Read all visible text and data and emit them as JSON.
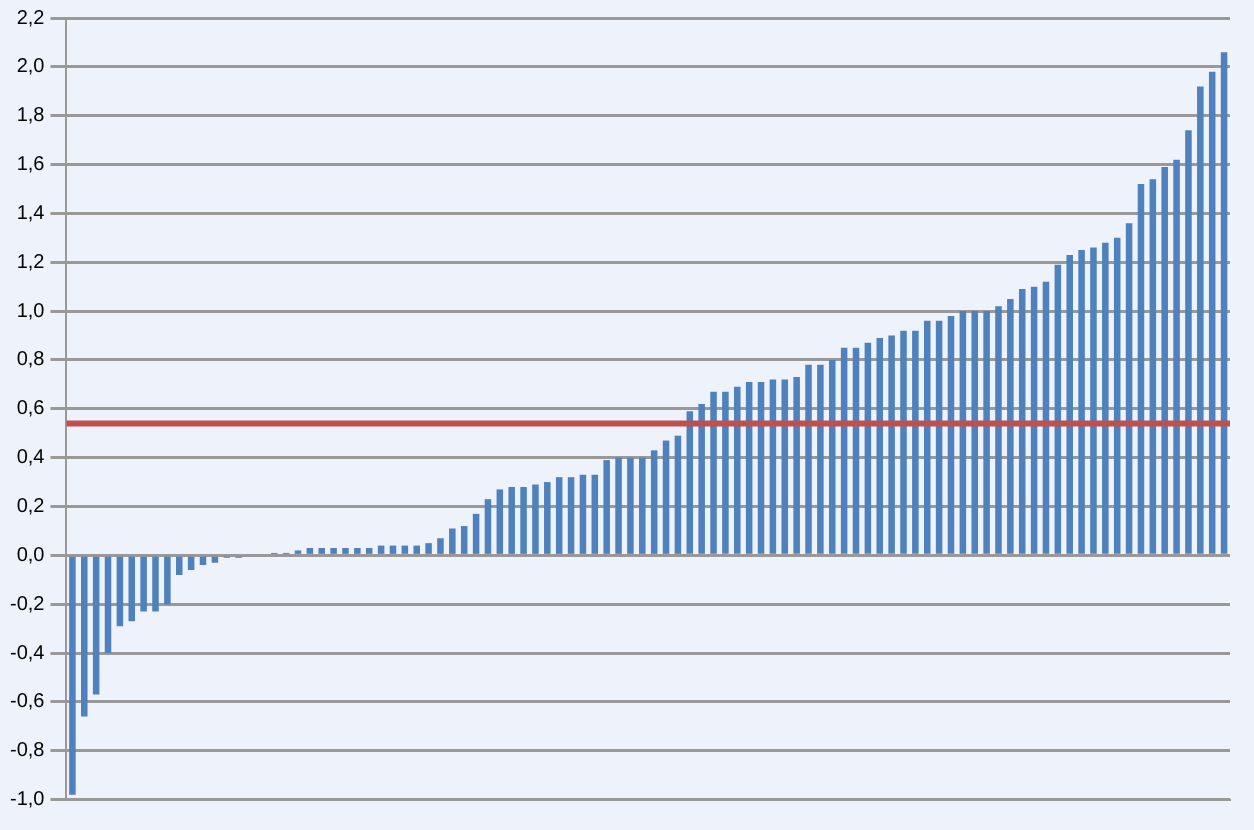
{
  "chart_data": {
    "type": "bar",
    "categories": [
      null,
      null,
      null,
      null,
      null,
      null,
      null,
      null,
      null,
      null,
      null,
      null,
      null,
      null,
      null,
      null,
      null,
      null,
      null,
      null,
      null,
      null,
      null,
      null,
      null,
      null,
      null,
      null,
      null,
      null,
      null,
      null,
      null,
      null,
      null,
      null,
      null,
      null,
      null,
      null,
      null,
      null,
      null,
      null,
      null,
      null,
      null,
      null,
      null,
      null,
      null,
      null,
      null,
      null,
      null,
      null,
      null,
      null,
      null,
      null,
      null,
      null,
      null,
      null,
      null,
      null,
      null,
      null,
      null,
      null,
      null,
      null,
      null,
      null,
      null,
      null,
      null,
      null,
      null,
      null,
      null,
      null,
      null,
      null,
      null,
      null,
      null,
      null,
      null,
      null,
      null,
      null,
      null,
      null,
      null,
      null,
      null,
      null
    ],
    "values": [
      -0.98,
      -0.66,
      -0.57,
      -0.4,
      -0.29,
      -0.27,
      -0.23,
      -0.23,
      -0.2,
      -0.08,
      -0.06,
      -0.04,
      -0.03,
      -0.01,
      -0.01,
      0,
      0,
      0.01,
      0.01,
      0.02,
      0.03,
      0.03,
      0.03,
      0.03,
      0.03,
      0.03,
      0.04,
      0.04,
      0.04,
      0.04,
      0.05,
      0.07,
      0.11,
      0.12,
      0.17,
      0.23,
      0.27,
      0.28,
      0.28,
      0.29,
      0.3,
      0.32,
      0.32,
      0.33,
      0.33,
      0.39,
      0.4,
      0.4,
      0.4,
      0.43,
      0.47,
      0.49,
      0.59,
      0.62,
      0.67,
      0.67,
      0.69,
      0.71,
      0.71,
      0.72,
      0.72,
      0.73,
      0.78,
      0.78,
      0.8,
      0.85,
      0.85,
      0.87,
      0.89,
      0.9,
      0.92,
      0.92,
      0.96,
      0.96,
      0.98,
      1.0,
      1.0,
      1.0,
      1.02,
      1.05,
      1.09,
      1.1,
      1.12,
      1.19,
      1.23,
      1.25,
      1.26,
      1.28,
      1.3,
      1.36,
      1.52,
      1.54,
      1.59,
      1.62,
      1.74,
      1.92,
      1.98,
      2.06
    ],
    "color": "#4f81bd",
    "ylim": [
      -1,
      2.2
    ],
    "yticks": [
      {
        "value": -1,
        "label": "-1,0"
      },
      {
        "value": -0.8,
        "label": "-0,8"
      },
      {
        "value": -0.6,
        "label": "-0,6"
      },
      {
        "value": -0.4,
        "label": "-0,4"
      },
      {
        "value": -0.2,
        "label": "-0,2"
      },
      {
        "value": 0,
        "label": "0,0"
      },
      {
        "value": 0.2,
        "label": "0,2"
      },
      {
        "value": 0.4,
        "label": "0,4"
      },
      {
        "value": 0.6,
        "label": "0,6"
      },
      {
        "value": 0.8,
        "label": "0,8"
      },
      {
        "value": 1,
        "label": "1,0"
      },
      {
        "value": 1.2,
        "label": "1,2"
      },
      {
        "value": 1.4,
        "label": "1,4"
      },
      {
        "value": 1.6,
        "label": "1,6"
      },
      {
        "value": 1.8,
        "label": "1,8"
      },
      {
        "value": 2,
        "label": "2,0"
      },
      {
        "value": 2.2,
        "label": "2,2"
      }
    ],
    "grid": "y",
    "ref_lines": [
      {
        "axis": "y",
        "value": 0.54,
        "color": "#c0504d"
      }
    ]
  }
}
